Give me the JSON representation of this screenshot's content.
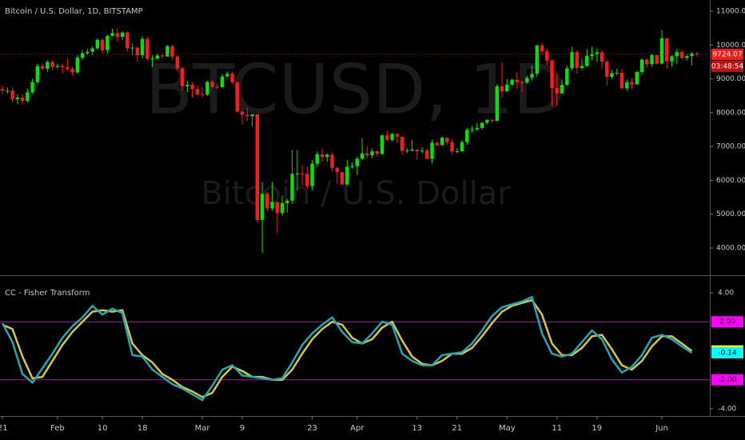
{
  "chart_data": [
    {
      "type": "candlestick",
      "title": "Bitcoin / U.S. Dollar, 1D, BITSTAMP",
      "watermark": "BTCUSD, 1D",
      "watermark_subtitle": "Bitcoin / U.S. Dollar",
      "countdown": "03:48:54",
      "up_color": "#00e600",
      "down_color": "#ff1a1a",
      "xlim": [
        -0.5,
        141.6
      ],
      "xticks": [
        {
          "value": 0,
          "label": "21"
        },
        {
          "value": 11,
          "label": "Feb"
        },
        {
          "value": 20,
          "label": "10"
        },
        {
          "value": 28,
          "label": "18"
        },
        {
          "value": 40,
          "label": "Mar"
        },
        {
          "value": 48,
          "label": "9"
        },
        {
          "value": 62,
          "label": "23"
        },
        {
          "value": 71,
          "label": "Apr"
        },
        {
          "value": 83,
          "label": "13"
        },
        {
          "value": 91,
          "label": "21"
        },
        {
          "value": 101,
          "label": "May"
        },
        {
          "value": 111,
          "label": "11"
        },
        {
          "value": 119,
          "label": "19"
        },
        {
          "value": 132,
          "label": "Jun"
        }
      ],
      "ylim": [
        3220,
        11330
      ],
      "yticks": [
        {
          "value": 4000,
          "label": "4000.00"
        },
        {
          "value": 5000,
          "label": "5000.00"
        },
        {
          "value": 6000,
          "label": "6000.00"
        },
        {
          "value": 7000,
          "label": "7000.00"
        },
        {
          "value": 8000,
          "label": "8000.00"
        },
        {
          "value": 9000,
          "label": "9000.00"
        },
        {
          "value": 10000,
          "label": "10000.00"
        },
        {
          "value": 11000,
          "label": "11000.00"
        }
      ],
      "open": [
        8700,
        8650,
        8650,
        8400,
        8450,
        8350,
        8600,
        8900,
        9380,
        9300,
        9500,
        9350,
        9380,
        9340,
        9290,
        9190,
        9620,
        9760,
        9800,
        9900,
        10150,
        9850,
        10270,
        10350,
        10240,
        10370,
        9900,
        9920,
        9700,
        10180,
        9600,
        9600,
        9690,
        9660,
        9970,
        9660,
        9310,
        8780,
        8820,
        8700,
        8540,
        8530,
        8910,
        8760,
        8750,
        9070,
        9150,
        8900,
        8030,
        7940,
        7900,
        7950,
        4830,
        5600,
        5170,
        5360,
        5030,
        5330,
        5400,
        6190,
        6200,
        6190,
        5830,
        6490,
        6770,
        6690,
        6760,
        6370,
        6240,
        5880,
        6400,
        6420,
        6640,
        6800,
        6740,
        6860,
        6780,
        7330,
        7200,
        7370,
        7290,
        6870,
        6880,
        6910,
        6860,
        6880,
        6640,
        7110,
        7040,
        7260,
        7130,
        6850,
        6860,
        7130,
        7490,
        7510,
        7550,
        7700,
        7790,
        7760,
        8780,
        8630,
        8830,
        8970,
        8900,
        8890,
        9030,
        9150,
        9990,
        9810,
        9540,
        8730,
        8570,
        8820,
        9310,
        9790,
        9320,
        9380,
        9680,
        9730,
        9780,
        9510,
        9060,
        9170,
        9180,
        8720,
        8900,
        8840,
        9200,
        9570,
        9430,
        9700,
        9450,
        10200,
        9520,
        9670,
        9790,
        9620,
        9670,
        9750
      ],
      "high": [
        8800,
        8750,
        8750,
        8550,
        8550,
        8700,
        9000,
        9450,
        9450,
        9550,
        9550,
        9450,
        9450,
        9600,
        9350,
        9700,
        9850,
        9880,
        9950,
        10200,
        10200,
        10300,
        10480,
        10500,
        10400,
        10400,
        10050,
        9950,
        10250,
        10250,
        9700,
        9750,
        9750,
        10000,
        10000,
        9700,
        9350,
        8950,
        8900,
        8800,
        8750,
        8950,
        8950,
        8850,
        9150,
        9200,
        9200,
        8900,
        8150,
        8150,
        7950,
        7950,
        5950,
        5650,
        5950,
        5360,
        5550,
        5450,
        6900,
        6900,
        6450,
        6400,
        6600,
        6850,
        6950,
        6800,
        6850,
        6400,
        6250,
        6600,
        6520,
        6700,
        7250,
        7000,
        6950,
        6850,
        7350,
        7450,
        7400,
        7380,
        7300,
        6950,
        7200,
        6910,
        6980,
        6940,
        7200,
        7150,
        7300,
        7270,
        7220,
        6960,
        7180,
        7550,
        7600,
        7700,
        7720,
        7800,
        7800,
        8850,
        9480,
        9000,
        9000,
        9200,
        8950,
        9100,
        9400,
        10000,
        10050,
        9900,
        9570,
        9150,
        8980,
        9400,
        9950,
        9850,
        9600,
        9880,
        9950,
        9900,
        9850,
        9560,
        9270,
        9300,
        9300,
        8980,
        9020,
        9230,
        9600,
        9600,
        9740,
        9700,
        10450,
        10200,
        9690,
        9880,
        9850,
        9730,
        9800,
        9800
      ],
      "low": [
        8550,
        8550,
        8300,
        8250,
        8250,
        8300,
        8550,
        8850,
        9250,
        9200,
        9250,
        9300,
        9150,
        9250,
        9100,
        9150,
        9550,
        9700,
        9700,
        9850,
        9750,
        9750,
        10250,
        10100,
        10150,
        9800,
        9700,
        9500,
        9600,
        9550,
        9350,
        9550,
        9600,
        9650,
        9550,
        9250,
        8650,
        8600,
        8450,
        8500,
        8450,
        8500,
        8700,
        8700,
        8750,
        9050,
        8850,
        8000,
        7650,
        7750,
        7600,
        4750,
        3850,
        5100,
        5100,
        4450,
        4950,
        5050,
        5300,
        5700,
        5850,
        5750,
        5700,
        6400,
        6550,
        6550,
        6250,
        5900,
        5870,
        5850,
        6350,
        6150,
        6600,
        6650,
        6650,
        6700,
        6760,
        7150,
        7150,
        7100,
        6760,
        6800,
        6850,
        6600,
        6800,
        6620,
        6500,
        7000,
        7030,
        7050,
        6750,
        6800,
        6850,
        7050,
        7400,
        7450,
        7500,
        7650,
        7700,
        7750,
        8450,
        8620,
        8800,
        8700,
        8600,
        8850,
        8950,
        9050,
        9700,
        9400,
        8200,
        8200,
        8560,
        8800,
        9250,
        9150,
        9250,
        9350,
        9550,
        9500,
        9300,
        8800,
        9000,
        9100,
        8700,
        8640,
        8700,
        8820,
        9120,
        9330,
        9350,
        9420,
        9420,
        9300,
        9370,
        9450,
        9580,
        9540,
        9400,
        9650
      ],
      "close": [
        8650,
        8650,
        8400,
        8450,
        8350,
        8600,
        8900,
        9380,
        9300,
        9500,
        9350,
        9380,
        9340,
        9290,
        9190,
        9620,
        9760,
        9800,
        9900,
        10150,
        9850,
        10270,
        10350,
        10240,
        10370,
        9900,
        9920,
        9700,
        10180,
        9600,
        9600,
        9690,
        9660,
        9970,
        9660,
        9310,
        8780,
        8820,
        8700,
        8540,
        8530,
        8910,
        8760,
        8750,
        9070,
        9150,
        8900,
        8030,
        7940,
        7900,
        7950,
        4830,
        5600,
        5170,
        5360,
        5030,
        5330,
        5400,
        6190,
        6200,
        6190,
        5830,
        6490,
        6770,
        6690,
        6760,
        6370,
        6240,
        5880,
        6400,
        6420,
        6640,
        6800,
        6740,
        6860,
        6780,
        7330,
        7200,
        7370,
        7290,
        6870,
        6880,
        6910,
        6860,
        6880,
        6640,
        7110,
        7040,
        7260,
        7130,
        6850,
        6860,
        7130,
        7490,
        7510,
        7550,
        7700,
        7790,
        7760,
        8780,
        8630,
        8830,
        8970,
        8900,
        8890,
        9030,
        9150,
        9990,
        9810,
        9540,
        8730,
        8570,
        8820,
        9310,
        9790,
        9320,
        9380,
        9680,
        9730,
        9780,
        9510,
        9060,
        9170,
        9180,
        8720,
        8900,
        8840,
        9200,
        9570,
        9430,
        9700,
        9450,
        10200,
        9520,
        9670,
        9790,
        9620,
        9670,
        9750,
        9724.07
      ]
    },
    {
      "type": "line",
      "title": "CC - Fisher Transform",
      "xlim": [
        -0.5,
        141.6
      ],
      "x": [
        0,
        2,
        4,
        6,
        8,
        10,
        12,
        14,
        16,
        18,
        20,
        22,
        24,
        26,
        28,
        30,
        32,
        34,
        36,
        38,
        40,
        42,
        44,
        46,
        48,
        50,
        52,
        54,
        56,
        58,
        60,
        62,
        64,
        66,
        68,
        70,
        72,
        74,
        76,
        78,
        80,
        82,
        84,
        86,
        88,
        90,
        92,
        94,
        96,
        98,
        100,
        102,
        104,
        106,
        108,
        110,
        112,
        114,
        116,
        118,
        120,
        122,
        124,
        126,
        128,
        130,
        132,
        134,
        136,
        138
      ],
      "ylim": [
        -4.5,
        5.16
      ],
      "yticks": [
        {
          "value": 4,
          "label": "4.00"
        },
        {
          "value": -4,
          "label": "-4.00"
        }
      ],
      "levels": [
        {
          "value": 2,
          "label": "2.00"
        },
        {
          "value": -2,
          "label": "-2.00"
        }
      ],
      "level_color": "#a020a0",
      "label_color": "#ff00ff",
      "series": [
        {
          "color": "#d9c73a",
          "label_color": "#ffff00",
          "values": [
            1.8,
            1.5,
            -0.4,
            -1.9,
            -1.8,
            -0.7,
            0.4,
            1.3,
            2.0,
            2.7,
            2.8,
            2.7,
            2.8,
            0.5,
            -0.3,
            -0.8,
            -1.6,
            -2.0,
            -2.5,
            -2.8,
            -3.2,
            -2.9,
            -1.8,
            -1.1,
            -1.4,
            -1.8,
            -1.8,
            -2.0,
            -2.0,
            -1.3,
            -0.2,
            0.8,
            1.5,
            2.0,
            1.8,
            0.9,
            0.5,
            0.8,
            1.6,
            2.0,
            0.7,
            -0.4,
            -0.9,
            -1.0,
            -0.7,
            -0.2,
            -0.2,
            0.2,
            1.0,
            1.9,
            2.7,
            3.1,
            3.3,
            3.5,
            2.5,
            0.5,
            -0.3,
            -0.3,
            0.2,
            1.0,
            1.1,
            0.1,
            -1.0,
            -1.3,
            -0.7,
            0.3,
            1.0,
            1.0,
            0.5,
            -0.01
          ]
        },
        {
          "color": "#1ea8b8",
          "label_color": "#00ffff",
          "values": [
            1.9,
            0.6,
            -1.6,
            -2.2,
            -1.2,
            -0.2,
            0.9,
            1.7,
            2.3,
            3.1,
            2.5,
            2.9,
            2.6,
            -0.3,
            -0.4,
            -1.3,
            -1.8,
            -2.3,
            -2.6,
            -3.0,
            -3.4,
            -2.4,
            -1.3,
            -1.0,
            -1.7,
            -1.8,
            -1.9,
            -2.0,
            -1.9,
            -0.8,
            0.4,
            1.2,
            1.8,
            2.3,
            1.3,
            0.6,
            0.5,
            1.2,
            2.0,
            1.8,
            -0.2,
            -0.7,
            -1.0,
            -1.0,
            -0.3,
            -0.2,
            -0.1,
            0.5,
            1.4,
            2.4,
            3.0,
            3.2,
            3.4,
            3.7,
            1.2,
            -0.2,
            -0.4,
            -0.2,
            0.6,
            1.4,
            0.8,
            -0.6,
            -1.5,
            -1.1,
            -0.3,
            0.9,
            1.1,
            0.8,
            0.3,
            -0.14
          ]
        }
      ]
    }
  ]
}
